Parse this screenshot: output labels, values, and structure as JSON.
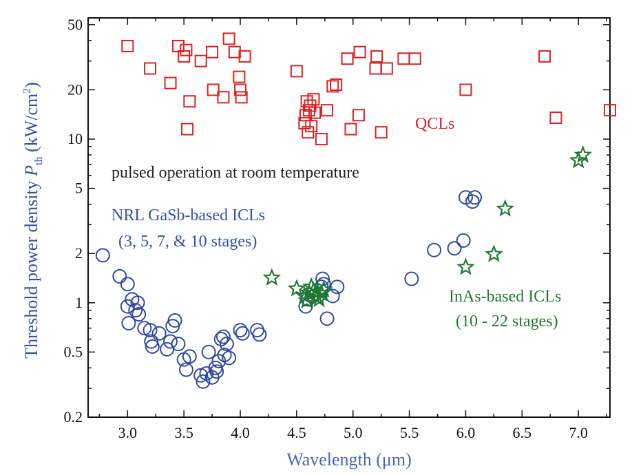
{
  "chart_data": {
    "type": "scatter",
    "xlabel": "Wavelength (μm)",
    "ylabel": {
      "main": "Threshold power density ",
      "symbol": "P",
      "subscript": "th",
      "unit_open": " (kW/cm",
      "unit_sup": "2",
      "unit_close": ")"
    },
    "xlim": [
      2.65,
      7.28
    ],
    "ylim": [
      0.2,
      55
    ],
    "y_scale": "log",
    "x_ticks": [
      {
        "v": 3.0,
        "label": "3.0"
      },
      {
        "v": 3.5,
        "label": "3.5"
      },
      {
        "v": 4.0,
        "label": "4.0"
      },
      {
        "v": 4.5,
        "label": "4.5"
      },
      {
        "v": 5.0,
        "label": "5.0"
      },
      {
        "v": 5.5,
        "label": "5.5"
      },
      {
        "v": 6.0,
        "label": "6.0"
      },
      {
        "v": 6.5,
        "label": "6.5"
      },
      {
        "v": 7.0,
        "label": "7.0"
      }
    ],
    "y_ticks": [
      {
        "v": 0.2,
        "label": "0.2"
      },
      {
        "v": 0.5,
        "label": "0.5"
      },
      {
        "v": 1,
        "label": "1"
      },
      {
        "v": 2,
        "label": "2"
      },
      {
        "v": 5,
        "label": "5"
      },
      {
        "v": 10,
        "label": "10"
      },
      {
        "v": 20,
        "label": "20"
      },
      {
        "v": 50,
        "label": "50"
      }
    ],
    "annotations": {
      "qcl": "QCLs",
      "conditions": "pulsed operation at room temperature",
      "nrl_line1": "NRL GaSb-based ICLs",
      "nrl_line2": "(3, 5, 7, & 10 stages)",
      "inas_line1": "InAs-based ICLs",
      "inas_line2": "(10 - 22 stages)"
    },
    "series": [
      {
        "marker": "square",
        "color": "#e02020",
        "points": [
          [
            3.0,
            37
          ],
          [
            3.2,
            27
          ],
          [
            3.38,
            22
          ],
          [
            3.45,
            37
          ],
          [
            3.5,
            32
          ],
          [
            3.52,
            35
          ],
          [
            3.53,
            11.5
          ],
          [
            3.55,
            17
          ],
          [
            3.65,
            30
          ],
          [
            3.75,
            34
          ],
          [
            3.76,
            20
          ],
          [
            3.85,
            18
          ],
          [
            3.9,
            41
          ],
          [
            3.95,
            34
          ],
          [
            3.99,
            24
          ],
          [
            4.0,
            20
          ],
          [
            4.01,
            18
          ],
          [
            4.04,
            32
          ],
          [
            4.5,
            26
          ],
          [
            4.57,
            12.5
          ],
          [
            4.58,
            14
          ],
          [
            4.59,
            17
          ],
          [
            4.6,
            11
          ],
          [
            4.61,
            15
          ],
          [
            4.62,
            16
          ],
          [
            4.63,
            12
          ],
          [
            4.65,
            17.5
          ],
          [
            4.66,
            14.5
          ],
          [
            4.72,
            10
          ],
          [
            4.77,
            15
          ],
          [
            4.82,
            21
          ],
          [
            4.85,
            21.5
          ],
          [
            4.95,
            31
          ],
          [
            4.98,
            11.5
          ],
          [
            5.05,
            14
          ],
          [
            5.06,
            34
          ],
          [
            5.2,
            27
          ],
          [
            5.21,
            32
          ],
          [
            5.25,
            11
          ],
          [
            5.3,
            27
          ],
          [
            5.45,
            31
          ],
          [
            5.55,
            31
          ],
          [
            6.0,
            20
          ],
          [
            6.7,
            32
          ],
          [
            6.8,
            13.5
          ],
          [
            7.28,
            15
          ]
        ]
      },
      {
        "marker": "circle",
        "color": "#2f4aa0",
        "points": [
          [
            2.78,
            1.95
          ],
          [
            2.93,
            1.45
          ],
          [
            3.0,
            1.3
          ],
          [
            3.0,
            0.95
          ],
          [
            3.01,
            0.75
          ],
          [
            3.04,
            1.05
          ],
          [
            3.07,
            0.9
          ],
          [
            3.09,
            1.0
          ],
          [
            3.1,
            0.85
          ],
          [
            3.15,
            0.7
          ],
          [
            3.2,
            0.68
          ],
          [
            3.21,
            0.58
          ],
          [
            3.22,
            0.54
          ],
          [
            3.28,
            0.65
          ],
          [
            3.35,
            0.52
          ],
          [
            3.38,
            0.58
          ],
          [
            3.4,
            0.72
          ],
          [
            3.42,
            0.78
          ],
          [
            3.45,
            0.56
          ],
          [
            3.5,
            0.45
          ],
          [
            3.52,
            0.39
          ],
          [
            3.55,
            0.47
          ],
          [
            3.65,
            0.36
          ],
          [
            3.67,
            0.33
          ],
          [
            3.7,
            0.37
          ],
          [
            3.72,
            0.5
          ],
          [
            3.75,
            0.35
          ],
          [
            3.78,
            0.4
          ],
          [
            3.79,
            0.38
          ],
          [
            3.81,
            0.44
          ],
          [
            3.83,
            0.6
          ],
          [
            3.85,
            0.62
          ],
          [
            3.86,
            0.48
          ],
          [
            3.88,
            0.56
          ],
          [
            3.9,
            0.46
          ],
          [
            4.0,
            0.68
          ],
          [
            4.02,
            0.65
          ],
          [
            4.15,
            0.68
          ],
          [
            4.17,
            0.64
          ],
          [
            4.58,
            0.95
          ],
          [
            4.6,
            1.05
          ],
          [
            4.65,
            1.1
          ],
          [
            4.72,
            1.25
          ],
          [
            4.73,
            1.4
          ],
          [
            4.74,
            1.3
          ],
          [
            4.77,
            0.8
          ],
          [
            4.82,
            1.1
          ],
          [
            4.86,
            1.25
          ],
          [
            5.52,
            1.4
          ],
          [
            5.72,
            2.1
          ],
          [
            5.9,
            2.15
          ],
          [
            5.98,
            2.4
          ],
          [
            6.0,
            4.4
          ],
          [
            6.06,
            4.15
          ],
          [
            6.08,
            4.4
          ]
        ]
      },
      {
        "marker": "star",
        "color": "#1f7a2e",
        "points": [
          [
            4.28,
            1.42
          ],
          [
            4.5,
            1.22
          ],
          [
            4.57,
            1.1
          ],
          [
            4.59,
            1.03
          ],
          [
            4.61,
            1.15
          ],
          [
            4.63,
            1.25
          ],
          [
            4.65,
            1.18
          ],
          [
            4.68,
            1.08
          ],
          [
            4.7,
            1.05
          ],
          [
            4.72,
            1.14
          ],
          [
            4.74,
            1.2
          ],
          [
            6.0,
            1.65
          ],
          [
            6.25,
            1.98
          ],
          [
            6.35,
            3.75
          ],
          [
            7.0,
            7.4
          ],
          [
            7.04,
            8.0
          ]
        ]
      }
    ]
  }
}
